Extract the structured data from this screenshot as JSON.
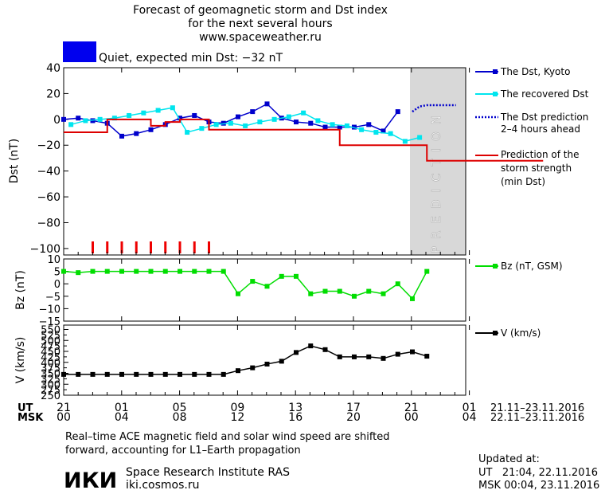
{
  "header": {
    "title_line1": "Forecast of geomagnetic storm and Dst index",
    "title_line2": "for the next several hours",
    "site": "www.spaceweather.ru",
    "status_text": "Quiet, expected min Dst: −32 nT",
    "status_color": "#0000ee"
  },
  "chart_data": [
    {
      "type": "line",
      "panel": "dst",
      "ylabel": "Dst (nT)",
      "ylim": [
        -105,
        40
      ],
      "yticks": [
        40,
        20,
        0,
        -20,
        -40,
        -60,
        -80,
        -100
      ],
      "x_hours_range": [
        0,
        51
      ],
      "series": [
        {
          "name": "The Dst, Kyoto",
          "color": "#0000cc",
          "style": "solid-square-markers",
          "x_hours": [
            0,
            1,
            2,
            3,
            4,
            5,
            6,
            7,
            8,
            9,
            10,
            11,
            12,
            13,
            14,
            15,
            16,
            17,
            18,
            19,
            20,
            21,
            22,
            23,
            24
          ],
          "values": [
            0,
            1,
            -1,
            -3,
            -13,
            -11,
            -8,
            -4,
            1,
            3,
            -2,
            -3,
            2,
            6,
            12,
            1,
            -2,
            -3,
            -6,
            -6,
            -6,
            -4,
            -9,
            6,
            null
          ]
        },
        {
          "name": "The recovered Dst",
          "color": "#00e5ee",
          "style": "solid-square-markers",
          "x_hours": [
            0.5,
            1.5,
            2.5,
            3.5,
            4.5,
            5.5,
            6.5,
            7.5,
            8.5,
            9.5,
            10.5,
            11.5,
            12.5,
            13.5,
            14.5,
            15.5,
            16.5,
            17.5,
            18.5,
            19.5,
            20.5,
            21.5,
            22.5,
            23.5,
            24.5
          ],
          "values": [
            -4,
            -1,
            0,
            1,
            3,
            5,
            7,
            9,
            -10,
            -7,
            -4,
            -3,
            -5,
            -2,
            0,
            2,
            5,
            -1,
            -4,
            -5,
            -8,
            -10,
            -11,
            -17,
            -14
          ]
        },
        {
          "name": "The Dst prediction 2-4 hours ahead",
          "color": "#0000cc",
          "style": "dotted",
          "x_hours": [
            24,
            24.5,
            25,
            25.5,
            26,
            27
          ],
          "values": [
            6,
            10,
            11,
            11,
            11,
            11
          ]
        },
        {
          "name": "Prediction of the storm strength (min Dst)",
          "color": "#dd0000",
          "style": "step",
          "x_hours": [
            0,
            2,
            3,
            5,
            6,
            7,
            8,
            9,
            10,
            11,
            12,
            13,
            14,
            15,
            16,
            17,
            18,
            19,
            20,
            21,
            22,
            23,
            24,
            25,
            26,
            27,
            28,
            29,
            30,
            31,
            32,
            33
          ],
          "values": [
            -10,
            -10,
            0,
            0,
            -5,
            -2,
            0,
            0,
            -8,
            -8,
            -8,
            -8,
            -8,
            -8,
            -8,
            -8,
            -8,
            -20,
            -20,
            -20,
            -20,
            -20,
            -20,
            -32,
            -32,
            -32,
            -32,
            -32,
            -32,
            -32,
            -32,
            -32
          ]
        }
      ],
      "storm_markers_hours": [
        2,
        3,
        4,
        5,
        6,
        7,
        8,
        9,
        10
      ],
      "prediction_band_hours": [
        24,
        28
      ],
      "prediction_label": "PREDICTION"
    },
    {
      "type": "line",
      "panel": "bz",
      "ylabel": "Bz (nT)",
      "ylim": [
        -15,
        10
      ],
      "yticks": [
        10,
        5,
        0,
        -5,
        -10,
        -15
      ],
      "series": [
        {
          "name": "Bz (nT, GSM)",
          "color": "#00dd00",
          "x_hours": [
            0,
            1,
            2,
            3,
            4,
            5,
            6,
            7,
            8,
            9,
            10,
            11,
            12,
            13,
            14,
            15,
            16,
            17,
            18,
            19,
            20,
            21,
            22,
            23,
            24,
            25
          ],
          "values": [
            5,
            4.5,
            5,
            5,
            5,
            5,
            5,
            5,
            5,
            5,
            5,
            5,
            -4,
            1,
            -1,
            3,
            3,
            -4,
            -3,
            -3,
            -5,
            -3,
            -4,
            0,
            -6,
            5
          ]
        }
      ]
    },
    {
      "type": "line",
      "panel": "v",
      "ylabel": "V (km/s)",
      "ylim": [
        250,
        570
      ],
      "yticks": [
        550,
        500,
        450,
        400,
        350,
        300,
        250
      ],
      "extra_yticks": [
        525,
        475,
        425,
        375,
        325,
        275
      ],
      "series": [
        {
          "name": "V (km/s)",
          "color": "#000000",
          "x_hours": [
            0,
            1,
            2,
            3,
            4,
            5,
            6,
            7,
            8,
            9,
            10,
            11,
            12,
            13,
            14,
            15,
            16,
            17,
            18,
            19,
            20,
            21,
            22,
            23,
            24,
            25
          ],
          "values": [
            345,
            345,
            345,
            345,
            345,
            345,
            345,
            345,
            345,
            345,
            345,
            345,
            362,
            375,
            392,
            405,
            445,
            475,
            458,
            425,
            425,
            425,
            418,
            437,
            448,
            428
          ]
        }
      ]
    }
  ],
  "x_axis": {
    "ut_label": "UT",
    "msk_label": "MSK",
    "ut_ticks": [
      "21",
      "01",
      "05",
      "09",
      "13",
      "17",
      "21",
      "01"
    ],
    "msk_ticks": [
      "00",
      "04",
      "08",
      "12",
      "16",
      "20",
      "00",
      "04"
    ],
    "ut_range": "21.11–23.11.2016",
    "msk_range": "22.11–23.11.2016"
  },
  "legend": {
    "dst_kyoto": "The Dst, Kyoto",
    "recovered": "The recovered Dst",
    "prediction_line1": "The Dst prediction",
    "prediction_line2": "2–4 hours ahead",
    "strength_line1": "Prediction of the",
    "strength_line2": "storm strength",
    "strength_line3": "(min Dst)",
    "bz": "Bz (nT, GSM)",
    "v": "V (km/s)"
  },
  "footer": {
    "note_line1": "Real–time ACE magnetic field and solar wind speed are shifted",
    "note_line2": "forward, accounting for L1–Earth propagation",
    "logo_text": "ИКИ",
    "institute": "Space Research Institute RAS",
    "website": "iki.cosmos.ru",
    "updated_label": "Updated at:",
    "updated_ut": "UT   21:04, 22.11.2016",
    "updated_msk": "MSK 00:04, 23.11.2016"
  }
}
